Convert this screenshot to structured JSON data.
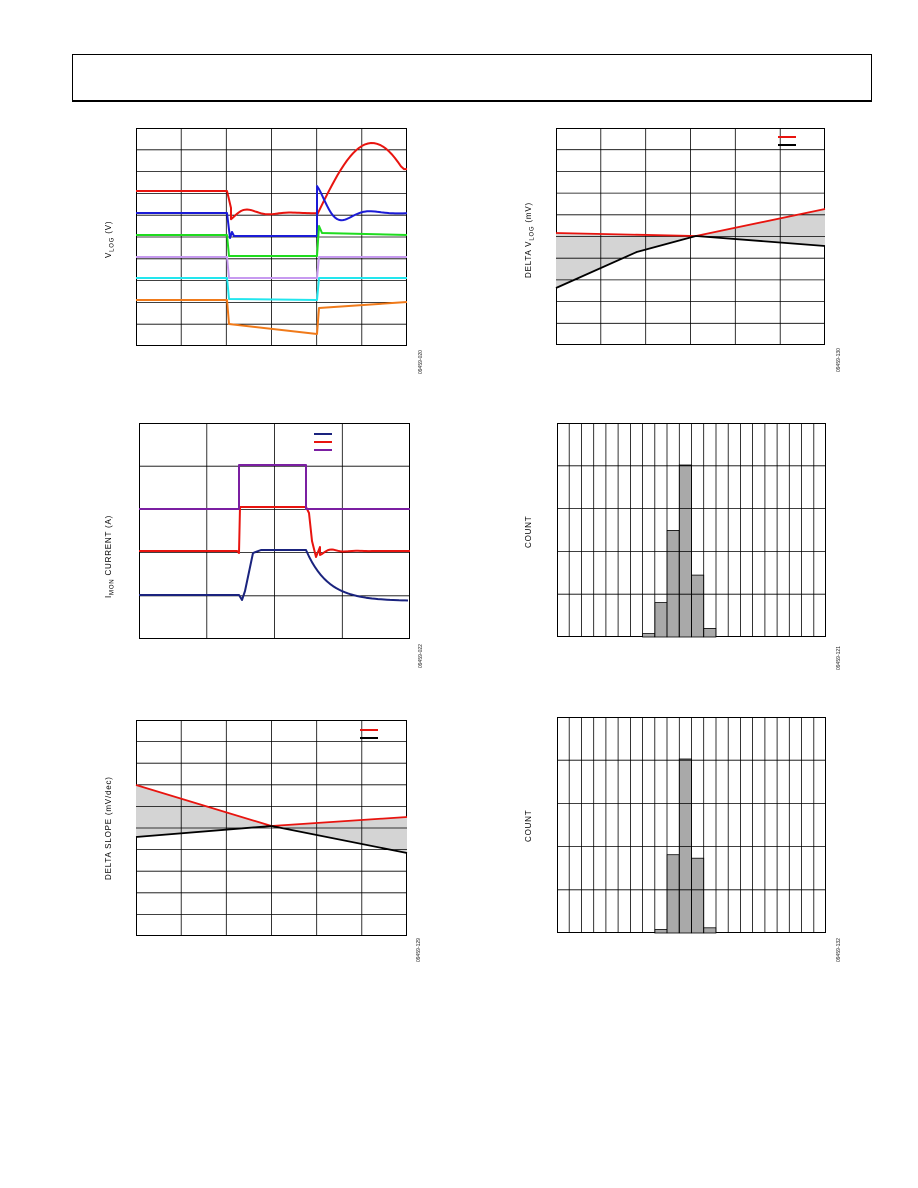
{
  "header": {},
  "figures": [
    {
      "id": "fig-vlog-step",
      "ylabel_main": "V",
      "ylabel_sub": "LOG",
      "ylabel_unit": " (V)",
      "figure_id": "09459-020",
      "chart_data": {
        "type": "line",
        "title": "",
        "xlabel": "",
        "ylabel": "V LOG (V)",
        "grid": true,
        "grid_divisions": {
          "x": 6,
          "y": 10
        },
        "series": [
          {
            "color": "#e8140f",
            "description": "red trace: steady, dips with damped ringing during step, rises to peak after step"
          },
          {
            "color": "#1b1bd6",
            "description": "blue trace: steady, drops at step start, overshoots and rings at step end"
          },
          {
            "color": "#1fdc1f",
            "description": "green trace: steps down during pulse"
          },
          {
            "color": "#c79af0",
            "description": "lavender trace: steps down during pulse"
          },
          {
            "color": "#22e6ee",
            "description": "cyan trace: steps down during pulse"
          },
          {
            "color": "#f07a1a",
            "description": "orange trace: steps down during pulse and slowly drifts"
          }
        ]
      }
    },
    {
      "id": "fig-delta-vlog",
      "ylabel_main": "DELTA V",
      "ylabel_sub": "LOG",
      "ylabel_unit": " (mV)",
      "figure_id": "09459-130",
      "chart_data": {
        "type": "line",
        "title": "",
        "xlabel": "",
        "ylabel": "DELTA V LOG (mV)",
        "grid": true,
        "grid_divisions": {
          "x": 6,
          "y": 10
        },
        "legend": {
          "position": "top-right",
          "swatches": [
            "#e8140f",
            "#000000"
          ]
        },
        "series": [
          {
            "color": "#e8140f",
            "x": [
              0,
              1
            ],
            "y": [
              0.25,
              0.59
            ]
          },
          {
            "color": "#000000",
            "x": [
              0,
              1
            ],
            "y": [
              -0.25,
              0.47
            ]
          }
        ],
        "shaded_band": true
      }
    },
    {
      "id": "fig-imon-current",
      "ylabel_main": "I",
      "ylabel_sub": "MON",
      "ylabel_unit": " CURRENT (A)",
      "figure_id": "09459-022",
      "chart_data": {
        "type": "line",
        "title": "",
        "xlabel": "",
        "ylabel": "I MON CURRENT (A)",
        "grid": true,
        "grid_divisions": {
          "x": 4,
          "y": 5
        },
        "legend": {
          "position": "top-center",
          "swatches": [
            "#1a237e",
            "#e8140f",
            "#7b1fa2"
          ]
        },
        "series": [
          {
            "color": "#1a237e",
            "description": "navy trace: rises to step level after pulse start, exponential decay after pulse end"
          },
          {
            "color": "#e8140f",
            "description": "red trace: pulse with ringing"
          },
          {
            "color": "#7b1fa2",
            "description": "purple trace: rectangular pulse"
          }
        ]
      }
    },
    {
      "id": "fig-hist-1",
      "ylabel_main": "COUNT",
      "ylabel_sub": "",
      "ylabel_unit": "",
      "figure_id": "09459-121",
      "chart_data": {
        "type": "bar",
        "title": "",
        "xlabel": "",
        "ylabel": "COUNT",
        "grid": true,
        "bins": 22,
        "values": [
          0,
          0,
          0,
          0,
          0,
          0,
          0,
          0.02,
          0.2,
          0.62,
          1.0,
          0.36,
          0.05,
          0,
          0,
          0,
          0,
          0,
          0,
          0,
          0,
          0
        ]
      }
    },
    {
      "id": "fig-delta-slope",
      "ylabel_main": "DELTA SLOPE (mV/dec)",
      "ylabel_sub": "",
      "ylabel_unit": "",
      "figure_id": "09459-129",
      "chart_data": {
        "type": "line",
        "title": "",
        "xlabel": "",
        "ylabel": "DELTA SLOPE (mV/dec)",
        "grid": true,
        "grid_divisions": {
          "x": 6,
          "y": 10
        },
        "legend": {
          "position": "top-right",
          "swatches": [
            "#e8140f",
            "#000000"
          ]
        },
        "series": [
          {
            "color": "#e8140f",
            "x": [
              0,
              0.5,
              1
            ],
            "y": [
              0.82,
              0.54,
              0.63
            ]
          },
          {
            "color": "#000000",
            "x": [
              0,
              0.5,
              1
            ],
            "y": [
              0.47,
              0.54,
              0.42
            ]
          }
        ],
        "shaded_band": true
      }
    },
    {
      "id": "fig-hist-2",
      "ylabel_main": "COUNT",
      "ylabel_sub": "",
      "ylabel_unit": "",
      "figure_id": "09459-132",
      "chart_data": {
        "type": "bar",
        "title": "",
        "xlabel": "",
        "ylabel": "COUNT",
        "grid": true,
        "bins": 22,
        "values": [
          0,
          0,
          0,
          0,
          0,
          0,
          0,
          0,
          0.02,
          0.45,
          1.0,
          0.43,
          0.03,
          0,
          0,
          0,
          0,
          0,
          0,
          0,
          0,
          0
        ]
      }
    }
  ]
}
